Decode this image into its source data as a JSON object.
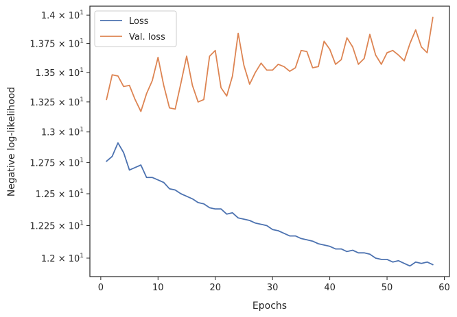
{
  "chart_data": {
    "type": "line",
    "xlabel": "Epochs",
    "ylabel": "Negative log-likelihood",
    "xlim": [
      -1.9,
      60.9
    ],
    "ylim": [
      11.86,
      14.08
    ],
    "y_scale": "log",
    "grid": false,
    "legend_position": "top-left",
    "xticks": [
      0,
      10,
      20,
      30,
      40,
      50,
      60
    ],
    "xtick_labels": [
      "0",
      "10",
      "20",
      "30",
      "40",
      "50",
      "60"
    ],
    "yticks": [
      12.0,
      12.25,
      12.5,
      12.75,
      13.0,
      13.25,
      13.5,
      13.75,
      14.0
    ],
    "ytick_labels": [
      {
        "mantissa": "1.2",
        "base": "× 10",
        "exp": "1"
      },
      {
        "mantissa": "1.225",
        "base": "× 10",
        "exp": "1"
      },
      {
        "mantissa": "1.25",
        "base": "× 10",
        "exp": "1"
      },
      {
        "mantissa": "1.275",
        "base": "× 10",
        "exp": "1"
      },
      {
        "mantissa": "1.3",
        "base": "× 10",
        "exp": "1"
      },
      {
        "mantissa": "1.325",
        "base": "× 10",
        "exp": "1"
      },
      {
        "mantissa": "1.35",
        "base": "× 10",
        "exp": "1"
      },
      {
        "mantissa": "1.375",
        "base": "× 10",
        "exp": "1"
      },
      {
        "mantissa": "1.4",
        "base": "× 10",
        "exp": "1"
      }
    ],
    "x": [
      1,
      2,
      3,
      4,
      5,
      6,
      7,
      8,
      9,
      10,
      11,
      12,
      13,
      14,
      15,
      16,
      17,
      18,
      19,
      20,
      21,
      22,
      23,
      24,
      25,
      26,
      27,
      28,
      29,
      30,
      31,
      32,
      33,
      34,
      35,
      36,
      37,
      38,
      39,
      40,
      41,
      42,
      43,
      44,
      45,
      46,
      47,
      48,
      49,
      50,
      51,
      52,
      53,
      54,
      55,
      56,
      57,
      58
    ],
    "series": [
      {
        "name": "Loss",
        "color": "#4c72b0",
        "values": [
          12.76,
          12.8,
          12.91,
          12.83,
          12.69,
          12.71,
          12.73,
          12.63,
          12.63,
          12.61,
          12.59,
          12.54,
          12.53,
          12.5,
          12.48,
          12.46,
          12.43,
          12.42,
          12.39,
          12.38,
          12.38,
          12.34,
          12.35,
          12.31,
          12.3,
          12.29,
          12.27,
          12.26,
          12.25,
          12.22,
          12.21,
          12.19,
          12.17,
          12.17,
          12.15,
          12.14,
          12.13,
          12.11,
          12.1,
          12.09,
          12.07,
          12.07,
          12.05,
          12.06,
          12.04,
          12.04,
          12.03,
          12.0,
          11.99,
          11.99,
          11.97,
          11.98,
          11.96,
          11.94,
          11.97,
          11.96,
          11.97,
          11.95
        ]
      },
      {
        "name": "Val. loss",
        "color": "#dd8452",
        "values": [
          13.27,
          13.48,
          13.47,
          13.38,
          13.39,
          13.27,
          13.17,
          13.32,
          13.43,
          13.63,
          13.39,
          13.2,
          13.19,
          13.41,
          13.64,
          13.39,
          13.25,
          13.27,
          13.64,
          13.69,
          13.37,
          13.3,
          13.47,
          13.84,
          13.56,
          13.4,
          13.5,
          13.58,
          13.52,
          13.52,
          13.57,
          13.55,
          13.51,
          13.54,
          13.69,
          13.68,
          13.54,
          13.55,
          13.77,
          13.7,
          13.57,
          13.61,
          13.8,
          13.72,
          13.57,
          13.62,
          13.83,
          13.65,
          13.57,
          13.67,
          13.69,
          13.65,
          13.6,
          13.75,
          13.87,
          13.72,
          13.67,
          13.98
        ]
      }
    ]
  }
}
